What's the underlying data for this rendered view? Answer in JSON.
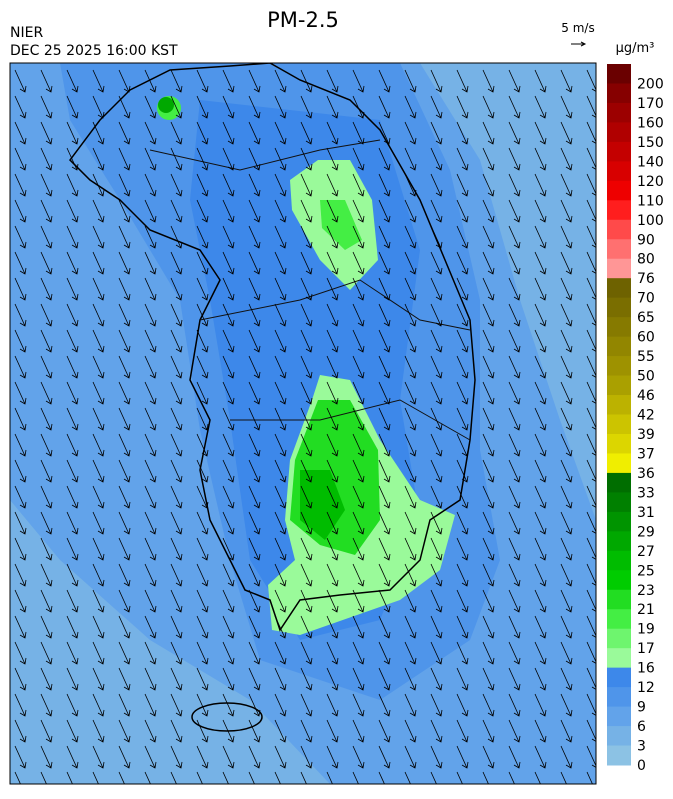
{
  "header": {
    "title": "PM-2.5",
    "agency": "NIER",
    "timestamp": "DEC 25 2025 16:00 KST",
    "wind_scale": "5 m/s",
    "unit": "μg/m³"
  },
  "colorbar": {
    "labels": [
      200,
      170,
      160,
      150,
      140,
      120,
      110,
      100,
      90,
      80,
      76,
      70,
      65,
      60,
      55,
      50,
      46,
      42,
      39,
      37,
      36,
      33,
      31,
      29,
      27,
      25,
      23,
      21,
      19,
      17,
      16,
      12,
      9,
      6,
      3,
      0
    ],
    "colors": [
      "#6a0000",
      "#860000",
      "#9c0000",
      "#b00000",
      "#c40000",
      "#d80000",
      "#ee0000",
      "#ff1e1e",
      "#ff4a4a",
      "#ff7070",
      "#ff9696",
      "#6e6200",
      "#7a6e00",
      "#867a00",
      "#928600",
      "#9e9200",
      "#aaa000",
      "#bcb200",
      "#ccc400",
      "#dcd600",
      "#f0ee00",
      "#006e00",
      "#008000",
      "#009400",
      "#00a800",
      "#00bc00",
      "#00cc00",
      "#22dd22",
      "#44ee44",
      "#6ef56e",
      "#9afa9a",
      "#3d88ea",
      "#4f95ea",
      "#62a3ea",
      "#76b2e6",
      "#8cc2e4"
    ]
  }
}
